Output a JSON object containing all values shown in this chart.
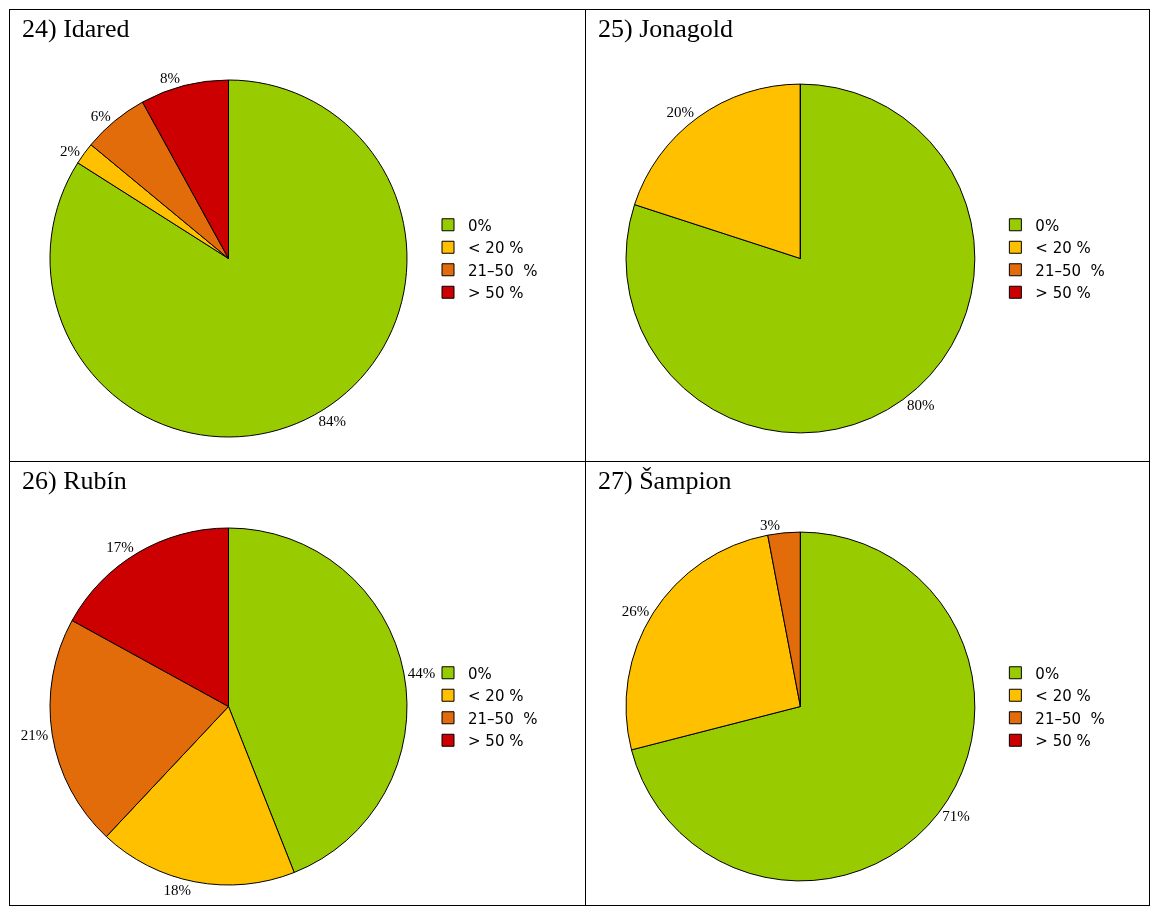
{
  "chart_data": [
    {
      "type": "pie",
      "title": "24) Idared",
      "categories": [
        "0%",
        "< 20 %",
        "21–50  %",
        "> 50 %"
      ],
      "values": [
        84,
        2,
        6,
        8
      ],
      "value_labels": [
        "84%",
        "2%",
        "6%",
        "8%"
      ],
      "colors": [
        "#99cc00",
        "#ffc000",
        "#e36c0a",
        "#cc0000"
      ],
      "legend": "right"
    },
    {
      "type": "pie",
      "title": "25) Jonagold",
      "categories": [
        "0%",
        "< 20 %",
        "21–50  %",
        "> 50 %"
      ],
      "values": [
        80,
        20,
        0,
        0
      ],
      "value_labels": [
        "80%",
        "20%",
        null,
        null
      ],
      "colors": [
        "#99cc00",
        "#ffc000",
        "#e36c0a",
        "#cc0000"
      ],
      "legend": "right"
    },
    {
      "type": "pie",
      "title": "26) Rubín",
      "categories": [
        "0%",
        "< 20 %",
        "21–50  %",
        "> 50 %"
      ],
      "values": [
        44,
        18,
        21,
        17
      ],
      "value_labels": [
        "44%",
        "18%",
        "21%",
        "17%"
      ],
      "colors": [
        "#99cc00",
        "#ffc000",
        "#e36c0a",
        "#cc0000"
      ],
      "legend": "right"
    },
    {
      "type": "pie",
      "title": "27) Šampion",
      "categories": [
        "0%",
        "< 20 %",
        "21–50  %",
        "> 50 %"
      ],
      "values": [
        71,
        26,
        3,
        0
      ],
      "value_labels": [
        "71%",
        "26%",
        "3%",
        null
      ],
      "colors": [
        "#99cc00",
        "#ffc000",
        "#e36c0a",
        "#cc0000"
      ],
      "legend": "right"
    }
  ]
}
